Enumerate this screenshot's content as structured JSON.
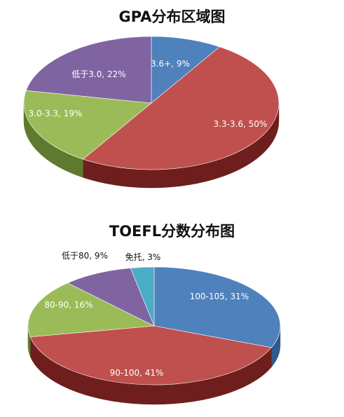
{
  "chart_data": [
    {
      "type": "pie",
      "title": "GPA分布区域图",
      "slices": [
        {
          "name": "3.6+",
          "value": 9,
          "label": "3.6+, 9%",
          "color": "#4f81bd",
          "dark": "#2f5a8c"
        },
        {
          "name": "3.3-3.6",
          "value": 50,
          "label": "3.3-3.6, 50%",
          "color": "#c0504d",
          "dark": "#6e1f1d"
        },
        {
          "name": "3.0-3.3",
          "value": 19,
          "label": "3.0-3.3, 19%",
          "color": "#9bbb59",
          "dark": "#5f7a2e"
        },
        {
          "name": "低于3.0",
          "value": 22,
          "label": "低于3.0, 22%",
          "color": "#8064a2",
          "dark": "#4e3a68"
        }
      ]
    },
    {
      "type": "pie",
      "title": "TOEFL分数分布图",
      "slices": [
        {
          "name": "100-105",
          "value": 31,
          "label": "100-105, 31%",
          "color": "#4f81bd",
          "dark": "#2f5a8c"
        },
        {
          "name": "90-100",
          "value": 41,
          "label": "90-100, 41%",
          "color": "#c0504d",
          "dark": "#6e1f1d"
        },
        {
          "name": "80-90",
          "value": 16,
          "label": "80-90, 16%",
          "color": "#9bbb59",
          "dark": "#5f7a2e"
        },
        {
          "name": "低于80",
          "value": 9,
          "label": "低于80, 9%",
          "color": "#8064a2",
          "dark": "#4e3a68"
        },
        {
          "name": "免托",
          "value": 3,
          "label": "免托, 3%",
          "color": "#4bacc6",
          "dark": "#2b7286"
        }
      ]
    }
  ]
}
